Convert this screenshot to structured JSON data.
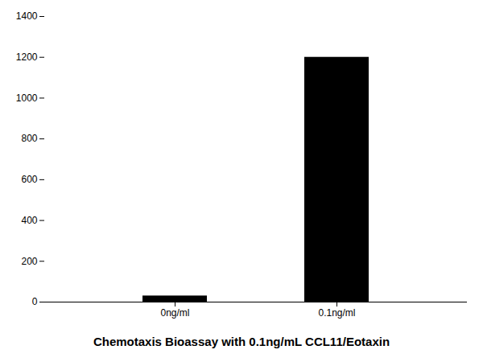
{
  "chart_data": {
    "type": "bar",
    "title": "Chemotaxis Bioassay with 0.1ng/mL CCL11/Eotaxin",
    "categories": [
      "0ng/ml",
      "0.1ng/ml"
    ],
    "values": [
      30,
      1200
    ],
    "color": "#000000",
    "ylim": [
      0,
      1400
    ],
    "yticks": [
      0,
      200,
      400,
      600,
      800,
      1000,
      1200,
      1400
    ],
    "grid": false
  }
}
